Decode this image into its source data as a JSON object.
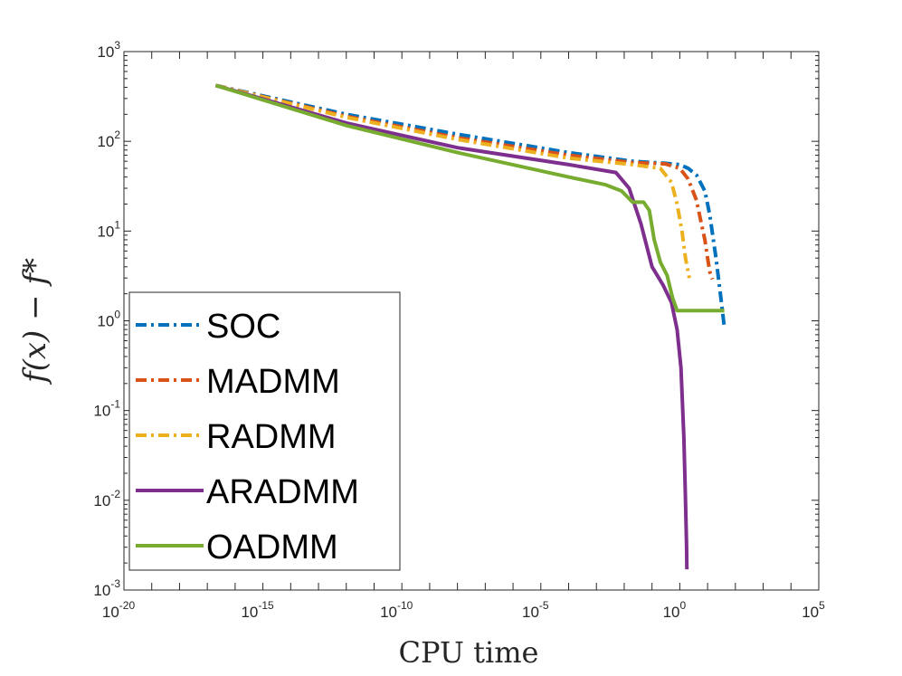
{
  "chart_data": {
    "type": "line",
    "xscale": "log",
    "yscale": "log",
    "xlim": [
      1e-20,
      100000.0
    ],
    "ylim": [
      0.001,
      1000
    ],
    "xlabel": "CPU time",
    "ylabel": "f(x) − f*",
    "xticks": [
      {
        "value": 1e-20,
        "base": "10",
        "exp": "-20"
      },
      {
        "value": 1e-15,
        "base": "10",
        "exp": "-15"
      },
      {
        "value": 1e-10,
        "base": "10",
        "exp": "-10"
      },
      {
        "value": 1e-05,
        "base": "10",
        "exp": "-5"
      },
      {
        "value": 1,
        "base": "10",
        "exp": "0"
      },
      {
        "value": 100000.0,
        "base": "10",
        "exp": "5"
      }
    ],
    "yticks": [
      {
        "value": 0.001,
        "base": "10",
        "exp": "-3"
      },
      {
        "value": 0.01,
        "base": "10",
        "exp": "-2"
      },
      {
        "value": 0.1,
        "base": "10",
        "exp": "-1"
      },
      {
        "value": 1,
        "base": "10",
        "exp": "0"
      },
      {
        "value": 10,
        "base": "10",
        "exp": "1"
      },
      {
        "value": 100,
        "base": "10",
        "exp": "2"
      },
      {
        "value": 1000,
        "base": "10",
        "exp": "3"
      }
    ],
    "grid": false,
    "legend_position": "bottom-left",
    "series": [
      {
        "name": "SOC",
        "color": "#0072BD",
        "dash": "dashdot",
        "width": 4,
        "x": [
          2e-17,
          1e-12,
          1e-08,
          0.0001,
          0.02,
          0.3,
          1,
          2,
          4,
          8,
          12,
          20,
          30,
          40
        ],
        "y": [
          420,
          200,
          120,
          75,
          60,
          57,
          55,
          50,
          42,
          28,
          15,
          5,
          1.8,
          0.85
        ]
      },
      {
        "name": "MADMM",
        "color": "#D95319",
        "dash": "dashdot",
        "width": 4,
        "x": [
          2e-17,
          1e-12,
          1e-08,
          0.0001,
          0.02,
          0.3,
          1,
          2,
          4,
          6,
          8,
          10,
          12,
          15
        ],
        "y": [
          420,
          190,
          110,
          70,
          58,
          56,
          50,
          38,
          22,
          12,
          8,
          5,
          3.5,
          2.9
        ]
      },
      {
        "name": "RADMM",
        "color": "#EDB120",
        "dash": "dashdot",
        "width": 4,
        "x": [
          2e-17,
          1e-12,
          1e-08,
          0.0001,
          0.02,
          0.2,
          0.5,
          0.8,
          1.2,
          1.6,
          2.2
        ],
        "y": [
          420,
          185,
          105,
          65,
          55,
          50,
          35,
          20,
          10,
          5,
          3
        ]
      },
      {
        "name": "ARADMM",
        "color": "#7E2F8E",
        "dash": "solid",
        "width": 4,
        "x": [
          2e-17,
          1e-12,
          1e-08,
          0.0001,
          0.005,
          0.015,
          0.04,
          0.1,
          0.25,
          0.5,
          0.8,
          1.1,
          1.4,
          1.6,
          1.75,
          1.8
        ],
        "y": [
          420,
          160,
          85,
          55,
          45,
          30,
          12,
          4,
          2.5,
          1.6,
          0.8,
          0.3,
          0.05,
          0.01,
          0.003,
          0.0017
        ]
      },
      {
        "name": "OADMM",
        "color": "#77AC30",
        "dash": "solid",
        "width": 4,
        "x": [
          2e-17,
          1e-12,
          1e-08,
          0.0001,
          0.002,
          0.008,
          0.02,
          0.05,
          0.08,
          0.12,
          0.2,
          0.35,
          0.55,
          0.8,
          1.2,
          5,
          20,
          40
        ],
        "y": [
          420,
          150,
          75,
          40,
          33,
          28,
          21,
          21,
          17,
          8,
          4.5,
          3.2,
          1.8,
          1.3,
          1.3,
          1.3,
          1.3,
          1.3
        ]
      }
    ]
  }
}
